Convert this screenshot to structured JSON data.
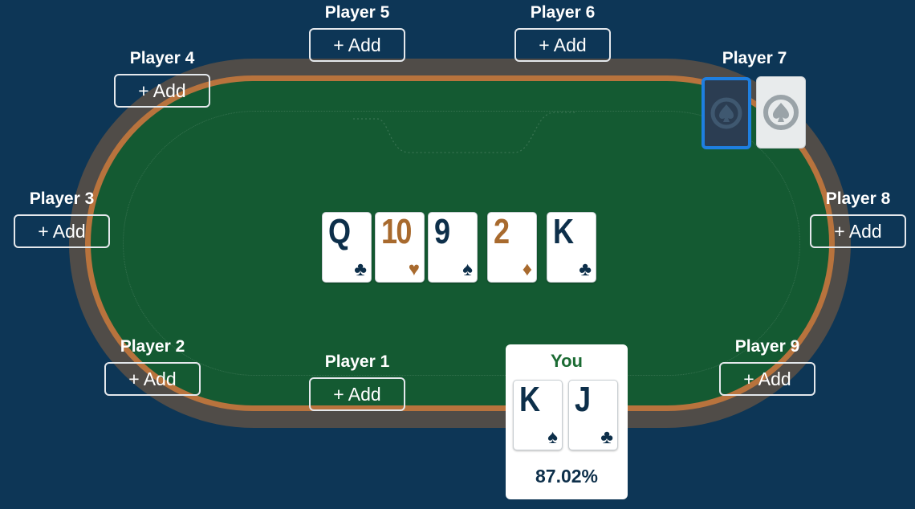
{
  "colors": {
    "background": "#0d3656",
    "felt": "#145a32",
    "rail": "#504c48",
    "wood_trim": "#b8733d",
    "card_dark_suit": "#0d2f4a",
    "card_red_suit": "#a86a2e",
    "selection_border": "#1e7fe0",
    "you_label": "#1b6b33"
  },
  "seats": [
    {
      "label": "Player 1",
      "button": "+ Add"
    },
    {
      "label": "Player 2",
      "button": "+ Add"
    },
    {
      "label": "Player 3",
      "button": "+ Add"
    },
    {
      "label": "Player 4",
      "button": "+ Add"
    },
    {
      "label": "Player 5",
      "button": "+ Add"
    },
    {
      "label": "Player 6",
      "button": "+ Add"
    },
    {
      "label": "Player 7"
    },
    {
      "label": "Player 8",
      "button": "+ Add"
    },
    {
      "label": "Player 9",
      "button": "+ Add"
    }
  ],
  "player7_cards": {
    "icon": "card-back-spade-logo-icon"
  },
  "board": [
    {
      "rank": "Q",
      "suit": "♣",
      "suit_name": "clubs"
    },
    {
      "rank": "10",
      "suit": "♥",
      "suit_name": "hearts"
    },
    {
      "rank": "9",
      "suit": "♠",
      "suit_name": "spades"
    },
    {
      "rank": "2",
      "suit": "♦",
      "suit_name": "diamonds"
    },
    {
      "rank": "K",
      "suit": "♣",
      "suit_name": "clubs"
    }
  ],
  "you": {
    "label": "You",
    "cards": [
      {
        "rank": "K",
        "suit": "♠",
        "suit_name": "spades"
      },
      {
        "rank": "J",
        "suit": "♣",
        "suit_name": "clubs"
      }
    ],
    "equity": "87.02%"
  }
}
